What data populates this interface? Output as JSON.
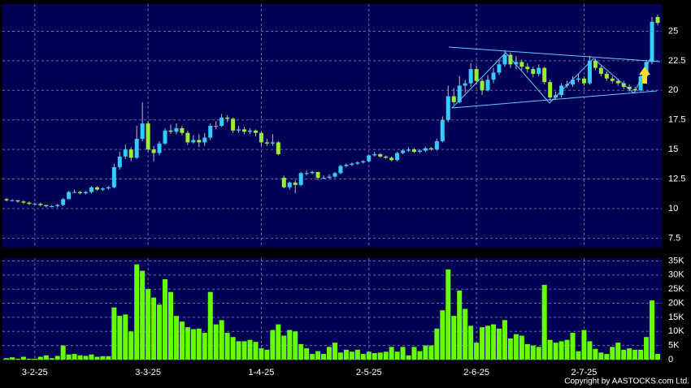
{
  "chart_data": {
    "type": "candlestick",
    "copyright": "Copyright by AASTOCKS.com Ltd.",
    "categories": [
      null,
      null,
      null,
      null,
      null,
      "3-2-25",
      null,
      null,
      null,
      null,
      null,
      null,
      null,
      null,
      null,
      null,
      null,
      null,
      null,
      null,
      null,
      null,
      null,
      null,
      null,
      "3-3-25",
      null,
      null,
      null,
      null,
      null,
      null,
      null,
      null,
      null,
      null,
      null,
      null,
      null,
      null,
      null,
      null,
      null,
      null,
      null,
      "1-4-25",
      null,
      null,
      null,
      null,
      null,
      null,
      null,
      null,
      null,
      null,
      null,
      null,
      null,
      null,
      null,
      null,
      null,
      null,
      "2-5-25",
      null,
      null,
      null,
      null,
      null,
      null,
      null,
      null,
      null,
      null,
      null,
      null,
      null,
      null,
      null,
      null,
      null,
      null,
      "2-6-25",
      null,
      null,
      null,
      null,
      null,
      null,
      null,
      null,
      null,
      null,
      null,
      null,
      null,
      null,
      null,
      null,
      null,
      null,
      "2-7-25",
      null,
      null,
      null,
      null,
      null,
      null,
      null,
      null,
      null,
      null,
      null,
      null,
      null
    ],
    "ohlc": [
      [
        10.8,
        10.9,
        10.6,
        10.7
      ],
      [
        10.7,
        10.8,
        10.6,
        10.7
      ],
      [
        10.7,
        10.7,
        10.5,
        10.6
      ],
      [
        10.6,
        10.7,
        10.4,
        10.5
      ],
      [
        10.5,
        10.6,
        10.3,
        10.4
      ],
      [
        10.4,
        10.5,
        10.3,
        10.4
      ],
      [
        10.4,
        10.5,
        10.2,
        10.3
      ],
      [
        10.3,
        10.3,
        10.1,
        10.2
      ],
      [
        10.2,
        10.3,
        10.1,
        10.2
      ],
      [
        10.2,
        10.4,
        10.1,
        10.3
      ],
      [
        10.3,
        10.9,
        10.2,
        10.8
      ],
      [
        10.8,
        11.5,
        10.8,
        11.4
      ],
      [
        11.4,
        11.6,
        11.3,
        11.4
      ],
      [
        11.4,
        11.5,
        11.2,
        11.3
      ],
      [
        11.3,
        11.5,
        11.2,
        11.4
      ],
      [
        11.4,
        11.9,
        11.3,
        11.8
      ],
      [
        11.8,
        11.9,
        11.5,
        11.6
      ],
      [
        11.6,
        11.8,
        11.5,
        11.7
      ],
      [
        11.7,
        11.9,
        11.6,
        11.8
      ],
      [
        11.8,
        13.8,
        11.7,
        13.5
      ],
      [
        13.5,
        14.8,
        13.3,
        14.4
      ],
      [
        14.4,
        15.4,
        14.2,
        15.0
      ],
      [
        15.0,
        15.2,
        14.0,
        14.3
      ],
      [
        14.3,
        17.0,
        14.2,
        15.9
      ],
      [
        15.9,
        19.0,
        15.7,
        17.2
      ],
      [
        17.2,
        17.4,
        14.8,
        15.0
      ],
      [
        15.0,
        15.3,
        14.0,
        14.7
      ],
      [
        14.7,
        15.7,
        14.5,
        15.5
      ],
      [
        15.5,
        16.8,
        15.4,
        16.6
      ],
      [
        16.6,
        17.1,
        16.3,
        16.5
      ],
      [
        16.5,
        17.2,
        16.3,
        16.8
      ],
      [
        16.8,
        17.0,
        16.2,
        16.4
      ],
      [
        16.4,
        16.6,
        15.4,
        15.6
      ],
      [
        15.6,
        16.2,
        15.5,
        15.8
      ],
      [
        15.8,
        16.3,
        15.2,
        15.6
      ],
      [
        15.6,
        16.4,
        15.3,
        16.0
      ],
      [
        16.0,
        17.2,
        15.8,
        17.0
      ],
      [
        17.0,
        17.4,
        16.7,
        17.0
      ],
      [
        17.0,
        18.0,
        16.9,
        17.7
      ],
      [
        17.7,
        17.9,
        17.3,
        17.6
      ],
      [
        17.6,
        17.7,
        16.4,
        16.6
      ],
      [
        16.6,
        17.0,
        16.4,
        16.7
      ],
      [
        16.7,
        16.9,
        16.3,
        16.5
      ],
      [
        16.5,
        16.8,
        16.3,
        16.6
      ],
      [
        16.6,
        16.7,
        16.1,
        16.4
      ],
      [
        16.4,
        16.5,
        15.3,
        15.6
      ],
      [
        15.6,
        15.9,
        15.3,
        15.5
      ],
      [
        15.5,
        16.3,
        15.3,
        15.6
      ],
      [
        15.6,
        15.7,
        14.5,
        14.6
      ],
      [
        12.6,
        12.8,
        11.7,
        11.8
      ],
      [
        11.8,
        12.3,
        11.6,
        12.2
      ],
      [
        12.2,
        12.4,
        11.3,
        12.0
      ],
      [
        12.0,
        13.1,
        11.9,
        13.0
      ],
      [
        13.0,
        13.2,
        12.8,
        13.0
      ],
      [
        13.0,
        13.2,
        12.9,
        13.1
      ],
      [
        13.1,
        13.1,
        12.4,
        12.6
      ],
      [
        12.6,
        12.8,
        12.5,
        12.6
      ],
      [
        12.6,
        12.9,
        12.5,
        12.7
      ],
      [
        12.7,
        13.1,
        12.6,
        13.0
      ],
      [
        13.0,
        13.7,
        12.9,
        13.6
      ],
      [
        13.6,
        13.8,
        13.5,
        13.7
      ],
      [
        13.7,
        13.9,
        13.6,
        13.8
      ],
      [
        13.8,
        14.0,
        13.7,
        13.9
      ],
      [
        13.9,
        14.1,
        13.8,
        14.0
      ],
      [
        14.0,
        14.6,
        13.9,
        14.5
      ],
      [
        14.5,
        14.8,
        14.4,
        14.6
      ],
      [
        14.6,
        14.7,
        14.3,
        14.4
      ],
      [
        14.4,
        14.5,
        14.2,
        14.3
      ],
      [
        14.3,
        14.4,
        14.0,
        14.1
      ],
      [
        14.1,
        14.8,
        14.0,
        14.7
      ],
      [
        14.7,
        15.0,
        14.6,
        14.9
      ],
      [
        14.9,
        15.2,
        14.8,
        15.0
      ],
      [
        15.0,
        15.1,
        14.7,
        14.8
      ],
      [
        14.8,
        15.0,
        14.7,
        14.9
      ],
      [
        14.9,
        15.2,
        14.8,
        15.1
      ],
      [
        15.1,
        15.2,
        14.9,
        15.0
      ],
      [
        15.0,
        15.9,
        14.9,
        15.7
      ],
      [
        15.7,
        17.8,
        15.6,
        17.5
      ],
      [
        17.5,
        20.4,
        17.3,
        19.5
      ],
      [
        19.5,
        20.2,
        18.8,
        19.0
      ],
      [
        19.0,
        21.2,
        18.9,
        20.4
      ],
      [
        20.4,
        20.9,
        19.8,
        20.6
      ],
      [
        20.6,
        22.3,
        20.3,
        21.8
      ],
      [
        21.8,
        22.1,
        20.5,
        20.8
      ],
      [
        20.8,
        21.0,
        19.6,
        20.0
      ],
      [
        20.0,
        21.3,
        19.9,
        20.9
      ],
      [
        20.9,
        21.9,
        20.6,
        21.5
      ],
      [
        21.5,
        22.6,
        21.3,
        22.2
      ],
      [
        22.2,
        23.4,
        22.0,
        23.0
      ],
      [
        23.0,
        23.2,
        21.9,
        22.2
      ],
      [
        22.2,
        22.9,
        21.8,
        22.4
      ],
      [
        22.4,
        22.6,
        21.7,
        22.0
      ],
      [
        22.0,
        22.3,
        21.5,
        21.8
      ],
      [
        21.8,
        22.0,
        21.1,
        21.4
      ],
      [
        21.4,
        22.2,
        21.2,
        21.9
      ],
      [
        21.9,
        22.0,
        20.5,
        20.7
      ],
      [
        20.7,
        20.9,
        19.1,
        19.4
      ],
      [
        19.4,
        19.9,
        19.2,
        19.6
      ],
      [
        19.6,
        20.6,
        19.4,
        20.4
      ],
      [
        20.4,
        20.8,
        20.2,
        20.5
      ],
      [
        20.5,
        21.2,
        20.3,
        20.9
      ],
      [
        20.9,
        21.4,
        20.7,
        21.0
      ],
      [
        21.0,
        21.2,
        20.4,
        20.6
      ],
      [
        20.6,
        22.9,
        20.5,
        22.5
      ],
      [
        22.5,
        22.7,
        21.7,
        21.9
      ],
      [
        21.9,
        22.1,
        21.2,
        21.4
      ],
      [
        21.4,
        21.6,
        20.8,
        21.0
      ],
      [
        21.0,
        21.2,
        20.6,
        20.8
      ],
      [
        20.8,
        21.0,
        20.4,
        20.6
      ],
      [
        20.6,
        20.8,
        20.1,
        20.3
      ],
      [
        20.3,
        20.5,
        19.9,
        20.1
      ],
      [
        20.1,
        20.3,
        19.8,
        20.0
      ],
      [
        20.0,
        21.4,
        19.9,
        21.2
      ],
      [
        21.2,
        22.6,
        21.0,
        22.4
      ],
      [
        22.4,
        26.2,
        22.2,
        25.8
      ],
      [
        26.2,
        26.4,
        25.5,
        25.7
      ]
    ],
    "volume": [
      500,
      800,
      300,
      1000,
      300,
      300,
      1000,
      1500,
      500,
      1300,
      5000,
      1800,
      2000,
      1500,
      1300,
      1800,
      1000,
      1200,
      1200,
      18500,
      15500,
      16000,
      10000,
      33800,
      31500,
      25000,
      22000,
      19500,
      28500,
      24000,
      15500,
      13500,
      11500,
      10800,
      11000,
      9500,
      24000,
      12500,
      14000,
      9500,
      8000,
      6500,
      6500,
      7000,
      6300,
      4000,
      3500,
      10500,
      12500,
      8500,
      10500,
      10000,
      5500,
      4000,
      2000,
      3000,
      2000,
      4500,
      6000,
      2500,
      3500,
      2800,
      3500,
      2000,
      2800,
      2300,
      2500,
      2800,
      4500,
      2800,
      4500,
      1500,
      4500,
      3000,
      5000,
      5000,
      11000,
      17500,
      32000,
      15500,
      24500,
      18000,
      12000,
      6000,
      11500,
      12000,
      12500,
      11000,
      14000,
      7500,
      9000,
      8500,
      5500,
      5000,
      4500,
      26500,
      7000,
      6000,
      6500,
      7000,
      9500,
      3000,
      10500,
      6500,
      3800,
      2500,
      2000,
      4500,
      6000,
      3500,
      4000,
      3500,
      3500,
      8000,
      21000,
      2000
    ],
    "up_color": "#33ccff",
    "down_color": "#99ee33",
    "volume_color": "#66ff00",
    "ylim": [
      6.7,
      27.3
    ],
    "yticks": [
      7.5,
      10,
      12.5,
      15,
      17.5,
      20,
      22.5,
      25
    ],
    "y2lim": [
      0,
      36000
    ],
    "y2ticks": [
      0,
      {
        "value": 5000,
        "label": "5K"
      },
      {
        "value": 10000,
        "label": "10K"
      },
      {
        "value": 15000,
        "label": "15K"
      },
      {
        "value": 20000,
        "label": "20K"
      },
      {
        "value": 25000,
        "label": "25K"
      },
      {
        "value": 30000,
        "label": "30K"
      },
      {
        "value": 35000,
        "label": "35K"
      }
    ],
    "grid": true
  }
}
